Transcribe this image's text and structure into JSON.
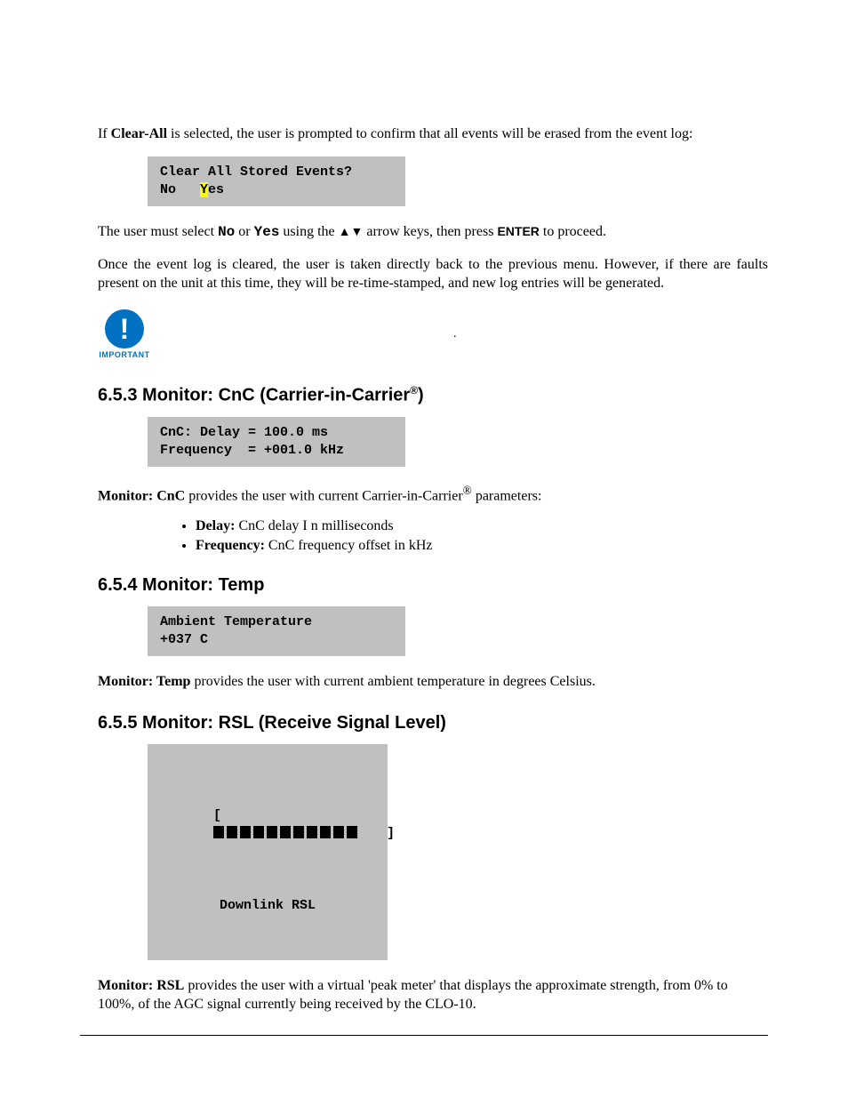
{
  "intro1_pre": "If ",
  "intro1_bold": "Clear-All",
  "intro1_post": " is selected, the user is prompted to confirm that all events will be erased from the event log:",
  "lcd_clear_line1": "Clear All Stored Events?",
  "lcd_clear_no": "No   ",
  "lcd_clear_yes_hl": "Y",
  "lcd_clear_yes_rest": "es",
  "para_select_pre": "The user must select ",
  "para_select_no": "No",
  "para_select_or": " or ",
  "para_select_yes": "Yes",
  "para_select_mid": "  using the ",
  "para_select_arrows": "▲▼",
  "para_select_keys": " arrow keys, then press ",
  "para_select_enter": "ENTER",
  "para_select_end": " to proceed.",
  "para_cleared": "Once the event log is cleared, the user is taken directly back to the previous menu. However, if there are faults present on the unit at this time, they will be re-time-stamped, and new log entries will be generated.",
  "important_label": "IMPORTANT",
  "sec_cnc_num": "6.5.3",
  "sec_cnc_title_a": "  Monitor: CnC (Carrier-in-Carrier",
  "sec_cnc_sup": "®",
  "sec_cnc_title_b": ")",
  "lcd_cnc_line1": "CnC: Delay = 100.0 ms",
  "lcd_cnc_line2": "Frequency  = +001.0 kHz",
  "cnc_desc_bold": "Monitor: CnC",
  "cnc_desc_mid": " provides the user with current Carrier-in-Carrier",
  "cnc_desc_sup": "®",
  "cnc_desc_end": " parameters:",
  "bullet1_b": "Delay:",
  "bullet1_t": " CnC delay I n milliseconds",
  "bullet2_b": "Frequency:",
  "bullet2_t": " CnC frequency offset in kHz",
  "sec_temp_num": "6.5.4",
  "sec_temp_title": "  Monitor: Temp",
  "lcd_temp_line1": "Ambient Temperature",
  "lcd_temp_line2": "+037 C",
  "temp_desc_bold": "Monitor: Temp",
  "temp_desc_rest": " provides the user with current ambient temperature in degrees Celsius.",
  "sec_rsl_num": "6.5.5",
  "sec_rsl_title": "  Monitor: RSL (Receive Signal Level)",
  "rsl_bracket_l": "[",
  "rsl_bracket_r": "]",
  "rsl_fill_count": 11,
  "lcd_rsl_line2": "Downlink RSL",
  "rsl_desc_bold": "Monitor: RSL",
  "rsl_desc_rest": " provides the user with a virtual 'peak meter' that displays the approximate strength, from 0% to 100%, of  the AGC signal currently being received by the CLO-10."
}
